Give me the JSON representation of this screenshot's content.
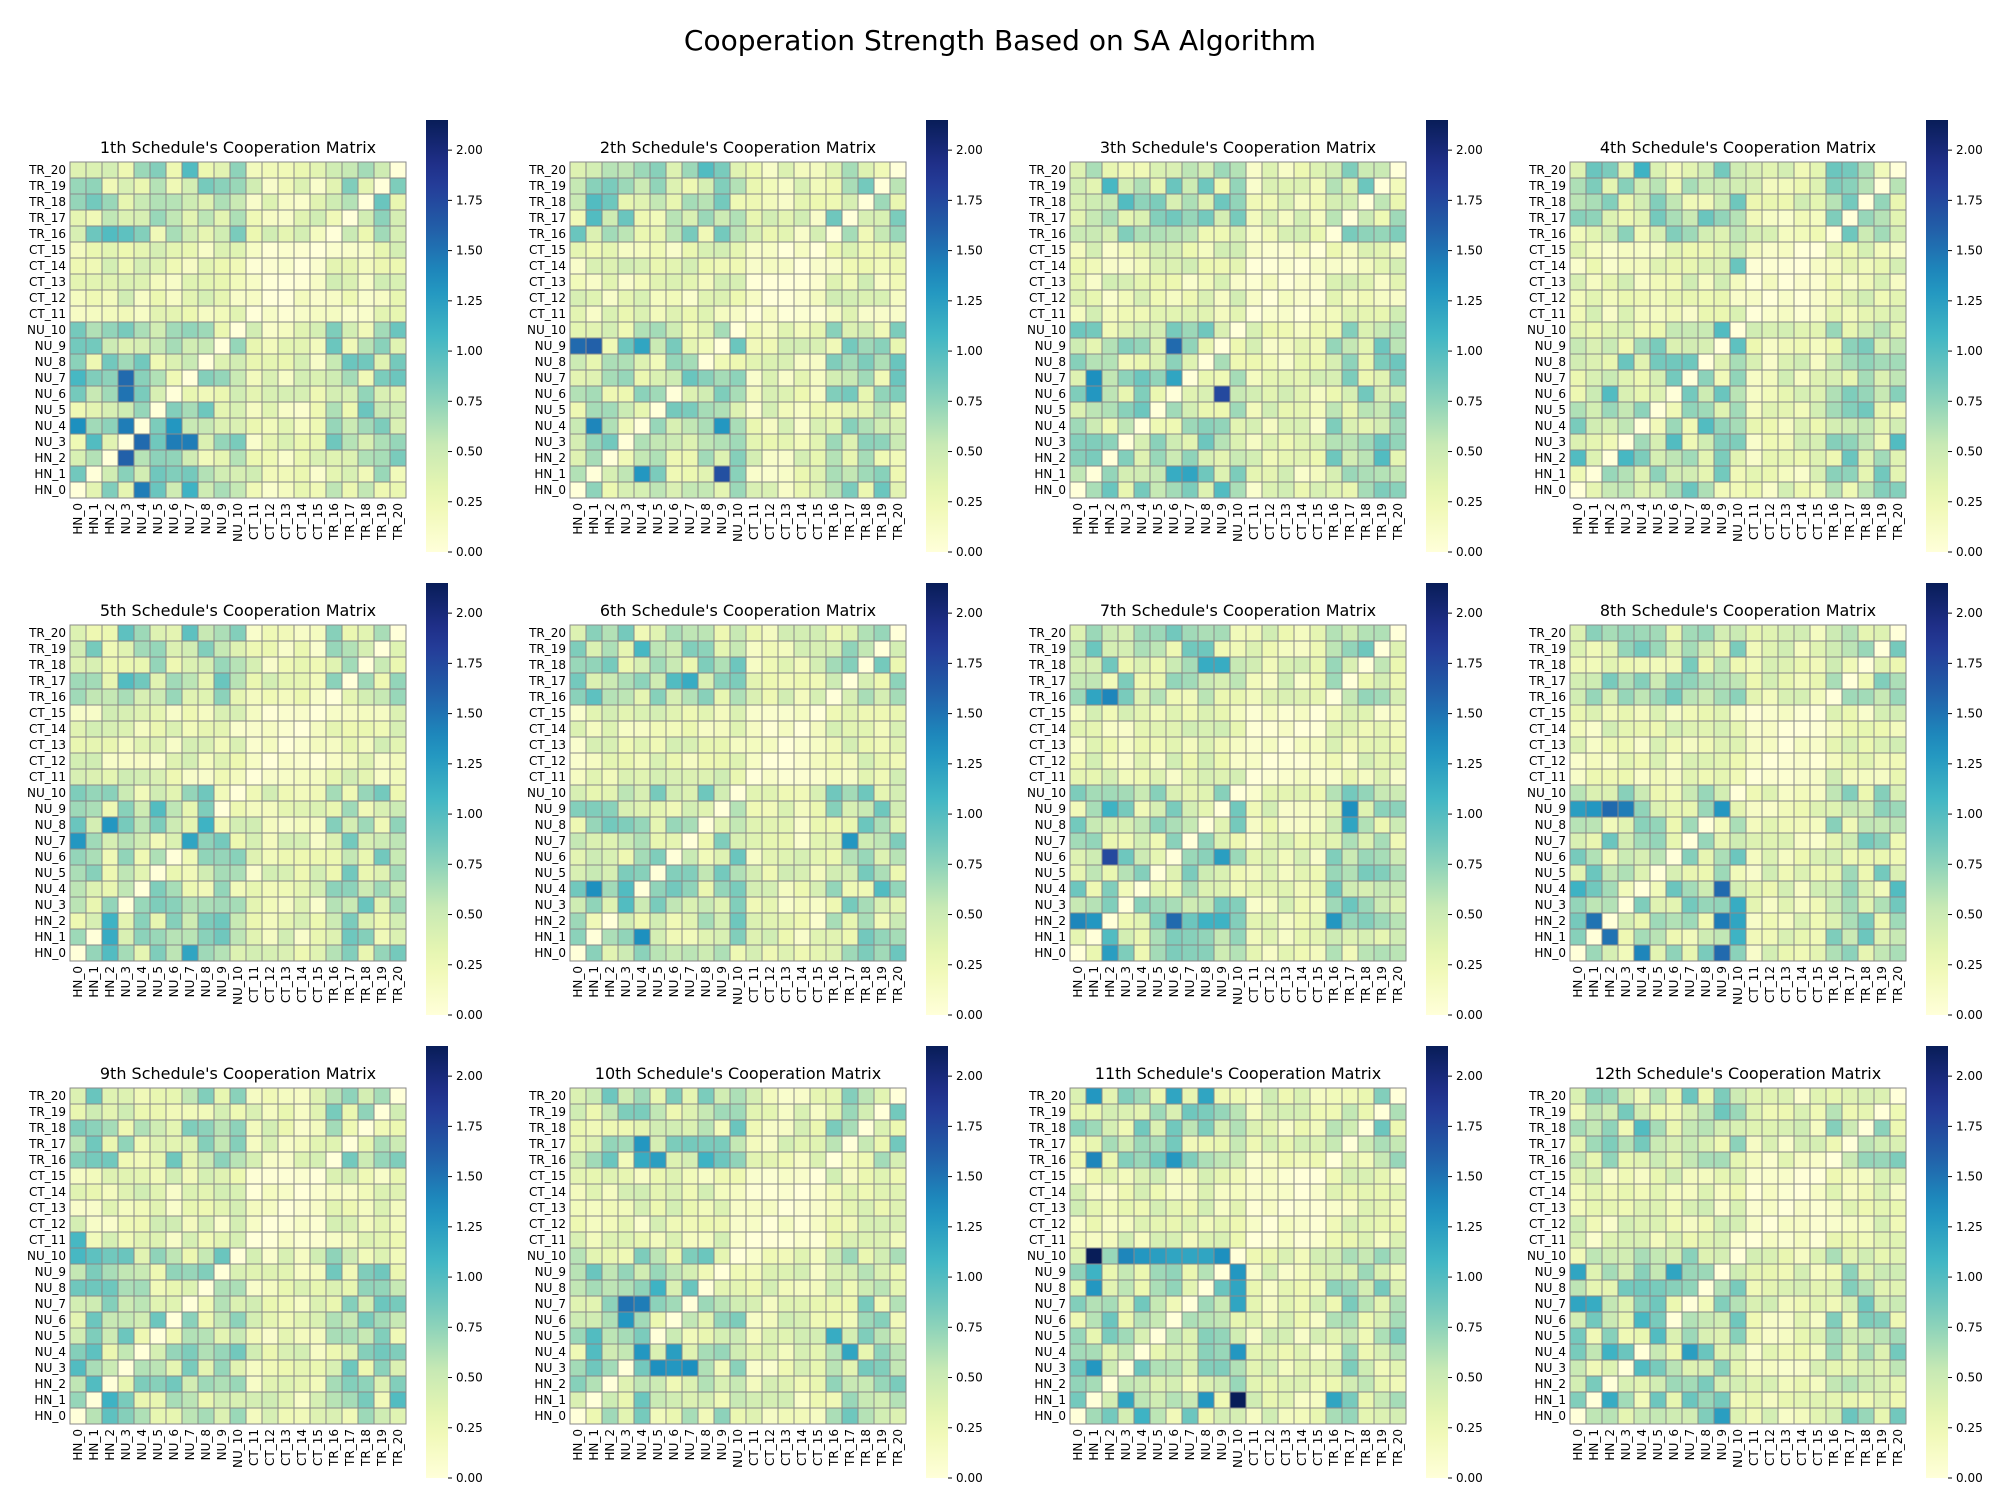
{
  "figure": {
    "title": "Cooperation Strength Based on SA Algorithm"
  },
  "chart_data": {
    "type": "heatmap",
    "colormap": "YlGnBu",
    "colorbar": {
      "min": 0.0,
      "max": 2.15,
      "ticks": [
        "0.00",
        "0.25",
        "0.50",
        "0.75",
        "1.00",
        "1.25",
        "1.50",
        "1.75",
        "2.00"
      ]
    },
    "x_labels": [
      "HN_0",
      "HN_1",
      "HN_2",
      "NU_3",
      "NU_4",
      "NU_5",
      "NU_6",
      "NU_7",
      "NU_8",
      "NU_9",
      "NU_10",
      "CT_11",
      "CT_12",
      "CT_13",
      "CT_14",
      "CT_15",
      "TR_16",
      "TR_17",
      "TR_18",
      "TR_19",
      "TR_20"
    ],
    "y_labels": [
      "TR_20",
      "TR_19",
      "TR_18",
      "TR_17",
      "TR_16",
      "CT_15",
      "CT_14",
      "CT_13",
      "CT_12",
      "CT_11",
      "NU_10",
      "NU_9",
      "NU_8",
      "NU_7",
      "NU_6",
      "NU_5",
      "NU_4",
      "NU_3",
      "HN_2",
      "HN_1",
      "HN_0"
    ],
    "panels": [
      {
        "title": "1th Schedule's Cooperation Matrix",
        "seed": 11,
        "hotspots": [
          [
            13,
            3,
            1.55
          ],
          [
            14,
            3,
            1.5
          ],
          [
            16,
            3,
            1.45
          ],
          [
            17,
            4,
            1.55
          ],
          [
            18,
            3,
            1.6
          ],
          [
            20,
            4,
            1.45
          ],
          [
            16,
            0,
            1.35
          ],
          [
            17,
            6,
            1.45
          ],
          [
            17,
            7,
            1.45
          ],
          [
            16,
            6,
            1.3
          ],
          [
            13,
            0,
            1.05
          ],
          [
            4,
            2,
            1.0
          ],
          [
            4,
            3,
            0.95
          ],
          [
            0,
            7,
            1.0
          ],
          [
            20,
            7,
            1.1
          ],
          [
            10,
            0,
            0.85
          ],
          [
            17,
            1,
            1.0
          ]
        ]
      },
      {
        "title": "2th Schedule's Cooperation Matrix",
        "seed": 23,
        "hotspots": [
          [
            11,
            0,
            1.55
          ],
          [
            11,
            1,
            1.6
          ],
          [
            16,
            1,
            1.4
          ],
          [
            19,
            9,
            1.7
          ],
          [
            16,
            9,
            1.3
          ],
          [
            19,
            4,
            1.3
          ],
          [
            11,
            4,
            1.2
          ],
          [
            2,
            1,
            1.0
          ],
          [
            3,
            1,
            1.0
          ],
          [
            0,
            8,
            1.0
          ],
          [
            12,
            20,
            0.9
          ],
          [
            13,
            7,
            0.9
          ]
        ]
      },
      {
        "title": "3th Schedule's Cooperation Matrix",
        "seed": 37,
        "hotspots": [
          [
            11,
            6,
            1.55
          ],
          [
            14,
            9,
            1.75
          ],
          [
            13,
            1,
            1.35
          ],
          [
            14,
            1,
            1.3
          ],
          [
            13,
            6,
            1.2
          ],
          [
            19,
            6,
            1.15
          ],
          [
            19,
            7,
            1.2
          ],
          [
            20,
            2,
            0.9
          ],
          [
            1,
            2,
            1.05
          ],
          [
            2,
            3,
            1.0
          ],
          [
            18,
            19,
            1.0
          ],
          [
            20,
            9,
            1.0
          ]
        ]
      },
      {
        "title": "4th Schedule's Cooperation Matrix",
        "seed": 41,
        "hotspots": [
          [
            0,
            4,
            1.1
          ],
          [
            14,
            2,
            1.0
          ],
          [
            18,
            0,
            1.0
          ],
          [
            18,
            3,
            1.05
          ],
          [
            16,
            8,
            1.0
          ],
          [
            17,
            6,
            1.0
          ],
          [
            11,
            10,
            0.95
          ],
          [
            17,
            20,
            1.0
          ],
          [
            10,
            9,
            1.0
          ],
          [
            6,
            10,
            0.9
          ]
        ]
      },
      {
        "title": "5th Schedule's Cooperation Matrix",
        "seed": 53,
        "hotspots": [
          [
            13,
            0,
            1.3
          ],
          [
            12,
            2,
            1.3
          ],
          [
            13,
            7,
            1.2
          ],
          [
            12,
            8,
            1.1
          ],
          [
            18,
            2,
            1.1
          ],
          [
            19,
            2,
            1.15
          ],
          [
            20,
            7,
            1.2
          ],
          [
            20,
            2,
            1.0
          ],
          [
            11,
            5,
            1.0
          ],
          [
            3,
            3,
            1.0
          ],
          [
            0,
            3,
            0.95
          ],
          [
            0,
            7,
            0.95
          ]
        ]
      },
      {
        "title": "6th Schedule's Cooperation Matrix",
        "seed": 61,
        "hotspots": [
          [
            16,
            1,
            1.35
          ],
          [
            19,
            4,
            1.35
          ],
          [
            13,
            17,
            1.3
          ],
          [
            3,
            7,
            1.15
          ],
          [
            1,
            4,
            1.05
          ],
          [
            17,
            3,
            1.0
          ],
          [
            4,
            1,
            0.95
          ],
          [
            16,
            3,
            1.0
          ],
          [
            16,
            19,
            1.0
          ],
          [
            3,
            6,
            1.0
          ]
        ]
      },
      {
        "title": "7th Schedule's Cooperation Matrix",
        "seed": 71,
        "hotspots": [
          [
            14,
            2,
            1.75
          ],
          [
            18,
            0,
            1.4
          ],
          [
            18,
            1,
            1.3
          ],
          [
            18,
            6,
            1.55
          ],
          [
            4,
            1,
            1.2
          ],
          [
            4,
            2,
            1.4
          ],
          [
            11,
            2,
            1.1
          ],
          [
            2,
            8,
            1.15
          ],
          [
            2,
            9,
            1.15
          ],
          [
            11,
            17,
            1.35
          ],
          [
            12,
            17,
            1.2
          ],
          [
            18,
            16,
            1.3
          ],
          [
            14,
            9,
            1.25
          ],
          [
            20,
            2,
            1.25
          ],
          [
            18,
            8,
            1.1
          ],
          [
            18,
            9,
            1.1
          ],
          [
            19,
            2,
            1.0
          ]
        ]
      },
      {
        "title": "8th Schedule's Cooperation Matrix",
        "seed": 83,
        "hotspots": [
          [
            11,
            2,
            1.55
          ],
          [
            11,
            3,
            1.45
          ],
          [
            11,
            1,
            1.3
          ],
          [
            11,
            0,
            1.25
          ],
          [
            11,
            9,
            1.3
          ],
          [
            16,
            9,
            1.55
          ],
          [
            18,
            9,
            1.45
          ],
          [
            18,
            1,
            1.5
          ],
          [
            19,
            2,
            1.5
          ],
          [
            20,
            9,
            1.55
          ],
          [
            20,
            4,
            1.4
          ],
          [
            18,
            10,
            1.2
          ],
          [
            17,
            10,
            1.15
          ],
          [
            19,
            10,
            1.1
          ],
          [
            16,
            0,
            1.1
          ],
          [
            16,
            20,
            1.0
          ]
        ]
      },
      {
        "title": "9th Schedule's Cooperation Matrix",
        "seed": 97,
        "hotspots": [
          [
            9,
            0,
            1.05
          ],
          [
            10,
            0,
            1.05
          ],
          [
            10,
            1,
            0.95
          ],
          [
            0,
            1,
            0.9
          ],
          [
            17,
            0,
            1.0
          ],
          [
            18,
            1,
            1.0
          ],
          [
            19,
            2,
            1.1
          ],
          [
            19,
            20,
            1.0
          ],
          [
            16,
            1,
            0.95
          ],
          [
            20,
            2,
            0.95
          ]
        ]
      },
      {
        "title": "10th Schedule's Cooperation Matrix",
        "seed": 101,
        "hotspots": [
          [
            13,
            3,
            1.5
          ],
          [
            13,
            4,
            1.45
          ],
          [
            14,
            3,
            1.3
          ],
          [
            16,
            4,
            1.3
          ],
          [
            16,
            6,
            1.25
          ],
          [
            17,
            5,
            1.35
          ],
          [
            17,
            6,
            1.3
          ],
          [
            17,
            7,
            1.35
          ],
          [
            3,
            4,
            1.3
          ],
          [
            4,
            5,
            1.25
          ],
          [
            4,
            4,
            1.15
          ],
          [
            15,
            16,
            1.15
          ],
          [
            16,
            17,
            1.2
          ],
          [
            4,
            8,
            1.1
          ],
          [
            12,
            5,
            1.1
          ],
          [
            16,
            1,
            1.0
          ],
          [
            15,
            1,
            1.0
          ]
        ]
      },
      {
        "title": "11th Schedule's Cooperation Matrix",
        "seed": 113,
        "hotspots": [
          [
            10,
            1,
            2.15
          ],
          [
            19,
            10,
            2.15
          ],
          [
            10,
            3,
            1.4
          ],
          [
            10,
            4,
            1.3
          ],
          [
            10,
            5,
            1.25
          ],
          [
            10,
            6,
            1.2
          ],
          [
            10,
            7,
            1.2
          ],
          [
            10,
            8,
            1.2
          ],
          [
            10,
            9,
            1.35
          ],
          [
            0,
            1,
            1.3
          ],
          [
            0,
            6,
            1.2
          ],
          [
            0,
            8,
            1.2
          ],
          [
            4,
            1,
            1.4
          ],
          [
            4,
            6,
            1.3
          ],
          [
            12,
            1,
            1.3
          ],
          [
            11,
            10,
            1.3
          ],
          [
            12,
            10,
            1.2
          ],
          [
            13,
            10,
            1.2
          ],
          [
            16,
            10,
            1.3
          ],
          [
            17,
            1,
            1.3
          ],
          [
            19,
            3,
            1.2
          ],
          [
            19,
            8,
            1.3
          ],
          [
            19,
            16,
            1.2
          ],
          [
            20,
            4,
            1.1
          ],
          [
            11,
            1,
            1.1
          ]
        ]
      },
      {
        "title": "12th Schedule's Cooperation Matrix",
        "seed": 127,
        "hotspots": [
          [
            13,
            0,
            1.2
          ],
          [
            13,
            1,
            1.15
          ],
          [
            11,
            0,
            1.2
          ],
          [
            11,
            6,
            1.2
          ],
          [
            16,
            2,
            1.1
          ],
          [
            16,
            7,
            1.25
          ],
          [
            19,
            2,
            1.15
          ],
          [
            20,
            9,
            1.25
          ],
          [
            17,
            4,
            1.0
          ],
          [
            14,
            4,
            1.05
          ],
          [
            2,
            4,
            1.0
          ],
          [
            15,
            5,
            1.0
          ]
        ]
      }
    ]
  }
}
